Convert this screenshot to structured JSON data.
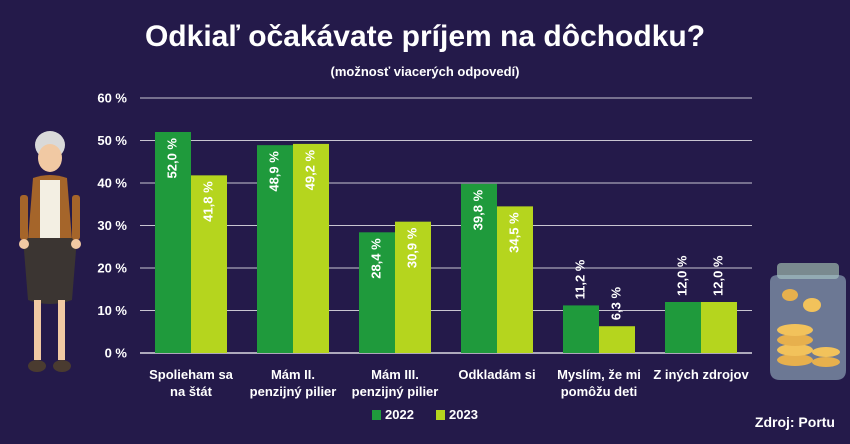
{
  "chart_data": {
    "type": "bar",
    "title": "Odkiaľ očakávate príjem na dôchodku?",
    "subtitle": "(možnosť viacerých odpovedí)",
    "categories": [
      [
        "Spolieham sa",
        "na štát"
      ],
      [
        "Mám II.",
        "penzijný pilier"
      ],
      [
        "Mám III.",
        "penzijný pilier"
      ],
      [
        "Odkladám si"
      ],
      [
        "Myslím, že mi",
        "pomôžu deti"
      ],
      [
        "Z iných zdrojov"
      ]
    ],
    "series": [
      {
        "name": "2022",
        "color": "#1f9a3c",
        "values": [
          52.0,
          48.9,
          28.4,
          39.8,
          11.2,
          12.0
        ],
        "labels": [
          "52,0 %",
          "48,9 %",
          "28,4 %",
          "39,8 %",
          "11,2 %",
          "12,0 %"
        ]
      },
      {
        "name": "2023",
        "color": "#b5d51e",
        "values": [
          41.8,
          49.2,
          30.9,
          34.5,
          6.3,
          12.0
        ],
        "labels": [
          "41,8 %",
          "49,2 %",
          "30,9 %",
          "34,5 %",
          "6,3 %",
          "12,0 %"
        ]
      }
    ],
    "ylim": [
      0,
      60
    ],
    "yticks": [
      {
        "value": 0,
        "label": "0 %"
      },
      {
        "value": 10,
        "label": "10 %"
      },
      {
        "value": 20,
        "label": "20 %"
      },
      {
        "value": 30,
        "label": "30 %"
      },
      {
        "value": 40,
        "label": "40 %"
      },
      {
        "value": 50,
        "label": "50 %"
      },
      {
        "value": 60,
        "label": "60 %"
      }
    ],
    "grid": true,
    "legend": "bottom-center",
    "xlabel": "",
    "ylabel": ""
  },
  "source": "Zdroj: Portu",
  "colors": {
    "background": "#241a4a",
    "gridline": "#ffffff",
    "label_on_green": "#ffffff",
    "label_on_lime": "#ffffff"
  }
}
